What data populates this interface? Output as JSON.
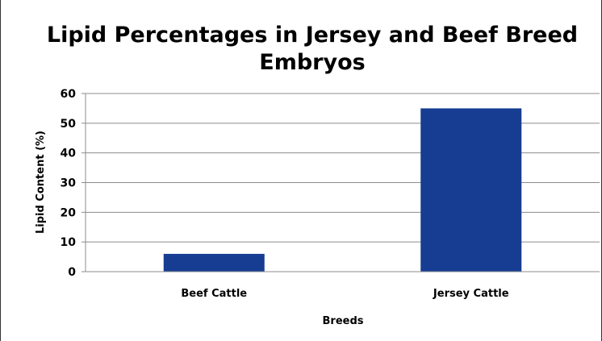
{
  "chart_data": {
    "type": "bar",
    "title_lines": [
      "Lipid Percentages in Jersey and Beef Breed",
      "Embryos"
    ],
    "categories": [
      "Beef Cattle",
      "Jersey Cattle"
    ],
    "values": [
      6,
      55
    ],
    "xlabel": "Breeds",
    "ylabel": "Lipid Content (%)",
    "ylim": [
      0,
      60
    ],
    "yticks": [
      "0",
      "10",
      "20",
      "30",
      "40",
      "50",
      "60"
    ],
    "grid": true,
    "legend": "none",
    "bar_color": "#163d92",
    "grid_color": "#8c8c8c"
  }
}
